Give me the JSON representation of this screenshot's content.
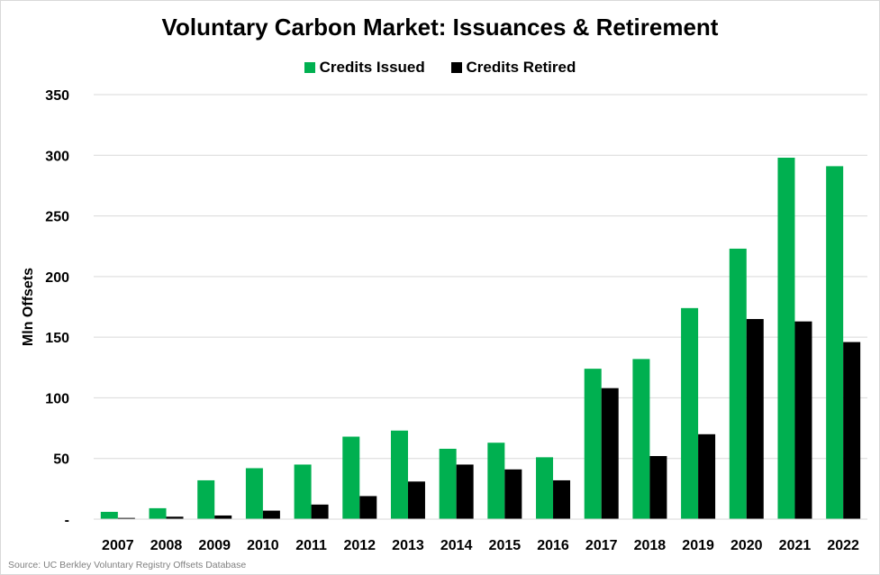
{
  "chart_data": {
    "type": "bar",
    "title": "Voluntary Carbon Market: Issuances & Retirement",
    "ylabel": "Mln Offsets",
    "xlabel": "",
    "ylim": [
      0,
      350
    ],
    "yticks": [
      "-",
      "50",
      "100",
      "150",
      "200",
      "250",
      "300",
      "350"
    ],
    "grid": true,
    "legend_position": "top",
    "categories": [
      "2007",
      "2008",
      "2009",
      "2010",
      "2011",
      "2012",
      "2013",
      "2014",
      "2015",
      "2016",
      "2017",
      "2018",
      "2019",
      "2020",
      "2021",
      "2022"
    ],
    "series": [
      {
        "name": "Credits Issued",
        "color": "#00b050",
        "values": [
          6,
          9,
          32,
          42,
          45,
          68,
          73,
          58,
          63,
          51,
          124,
          132,
          174,
          223,
          298,
          291
        ]
      },
      {
        "name": "Credits Retired",
        "color": "#000000",
        "values": [
          1,
          2,
          3,
          7,
          12,
          19,
          31,
          45,
          41,
          32,
          108,
          52,
          70,
          165,
          163,
          146
        ]
      }
    ]
  },
  "source": "Source: UC Berkley Voluntary Registry Offsets Database"
}
